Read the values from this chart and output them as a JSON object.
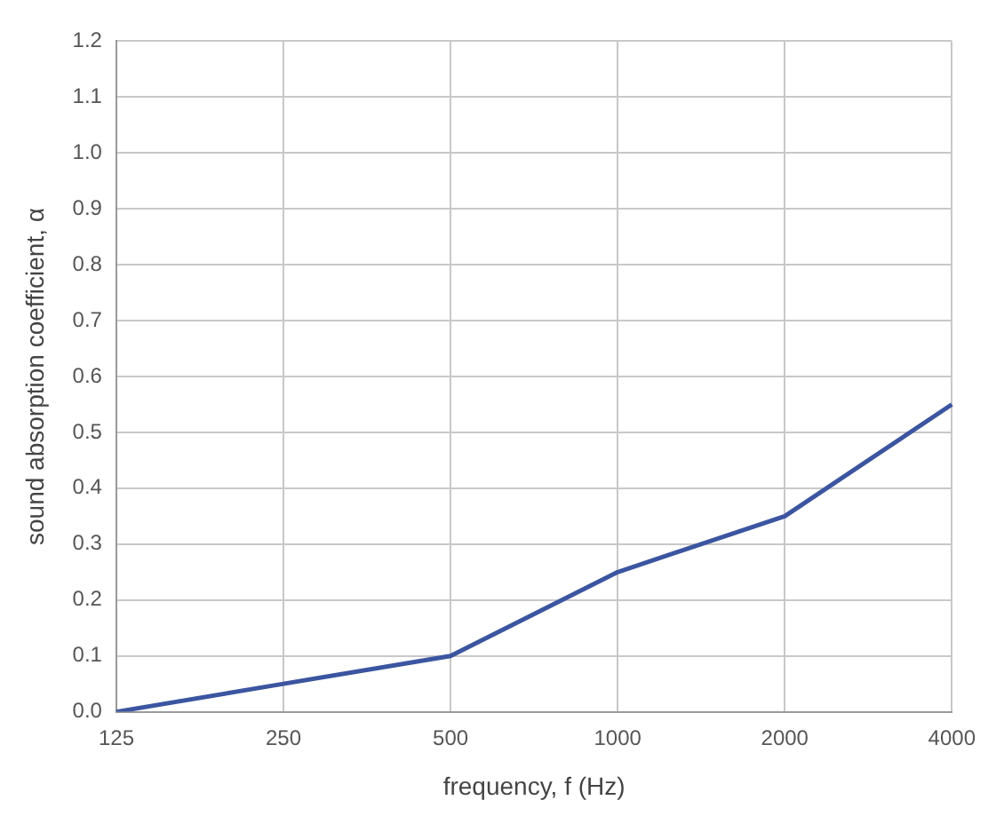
{
  "chart_data": {
    "type": "line",
    "xlabel": "frequency, f (Hz)",
    "ylabel": "sound absorption coefficient, α",
    "categories": [
      "125",
      "250",
      "500",
      "1000",
      "2000",
      "4000"
    ],
    "series": [
      {
        "color": "#3b55a0",
        "values": [
          0,
          0.05,
          0.1,
          0.25,
          0.35,
          0.55
        ]
      }
    ],
    "ylim": [
      0,
      1.2
    ],
    "yticks": [
      {
        "value": 0,
        "label": "0.0"
      },
      0.1,
      0.2,
      0.3,
      0.4,
      0.5,
      0.6,
      0.7,
      0.8,
      0.9,
      {
        "value": 1,
        "label": "1.0"
      },
      1.1,
      1.2
    ],
    "grid": true,
    "legend": false,
    "marker": "none",
    "line_style": "solid"
  }
}
